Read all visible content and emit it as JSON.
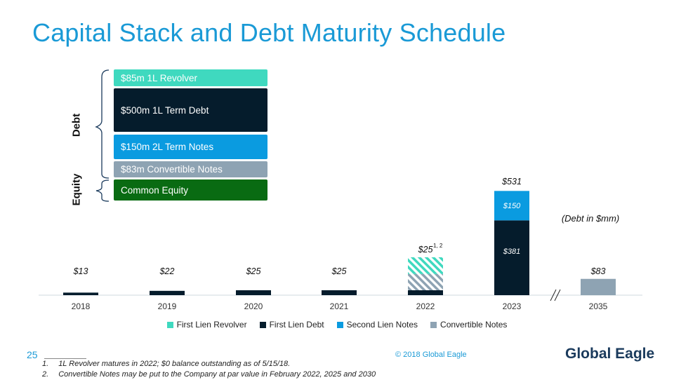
{
  "title": "Capital Stack and Debt Maturity Schedule",
  "stack": {
    "debt_label": "Debt",
    "equity_label": "Equity",
    "blocks": [
      {
        "label": "$85m 1L Revolver",
        "color": "#3fd9bf"
      },
      {
        "label": "$500m 1L Term Debt",
        "color": "#051c2c"
      },
      {
        "label": "$150m 2L Term Notes",
        "color": "#0a9be0"
      },
      {
        "label": "$83m Convertible Notes",
        "color": "#8ea3b3"
      },
      {
        "label": "Common Equity",
        "color": "#096b12"
      }
    ]
  },
  "chart_data": {
    "type": "bar",
    "categories": [
      "2018",
      "2019",
      "2020",
      "2021",
      "2022",
      "2023",
      "2035"
    ],
    "series": [
      {
        "name": "First Lien Revolver",
        "color": "#3fd9bf",
        "values": [
          0,
          0,
          0,
          0,
          85,
          0,
          0
        ],
        "pattern": "hatched"
      },
      {
        "name": "First Lien Debt",
        "color": "#051c2c",
        "values": [
          13,
          22,
          25,
          25,
          25,
          381,
          0
        ]
      },
      {
        "name": "Second Lien Notes",
        "color": "#0a9be0",
        "values": [
          0,
          0,
          0,
          0,
          0,
          150,
          0
        ]
      },
      {
        "name": "Convertible Notes",
        "color": "#8ea3b3",
        "values": [
          0,
          0,
          0,
          0,
          83,
          0,
          83
        ],
        "pattern_by_category": [
          "",
          "",
          "",
          "",
          "hatched",
          "",
          ""
        ]
      }
    ],
    "totals": [
      "$13",
      "$22",
      "$25",
      "$25",
      "$25",
      "$531",
      "$83"
    ],
    "total_superscripts": [
      "",
      "",
      "",
      "",
      "1, 2",
      "",
      ""
    ],
    "segment_labels": {
      "2023": [
        "$381",
        "$150"
      ]
    },
    "annotation": "(Debt in $mm)",
    "axis_break_between": [
      "2023",
      "2035"
    ]
  },
  "footer": {
    "page_number": "25",
    "copyright": "© 2018 Global Eagle",
    "logo_text": "Global Eagle",
    "notes": [
      {
        "num": "1.",
        "text": "1L Revolver matures in 2022; $0 balance outstanding as of 5/15/18."
      },
      {
        "num": "2.",
        "text": "Convertible Notes may be put to the Company at par value in February 2022, 2025 and 2030"
      }
    ]
  }
}
